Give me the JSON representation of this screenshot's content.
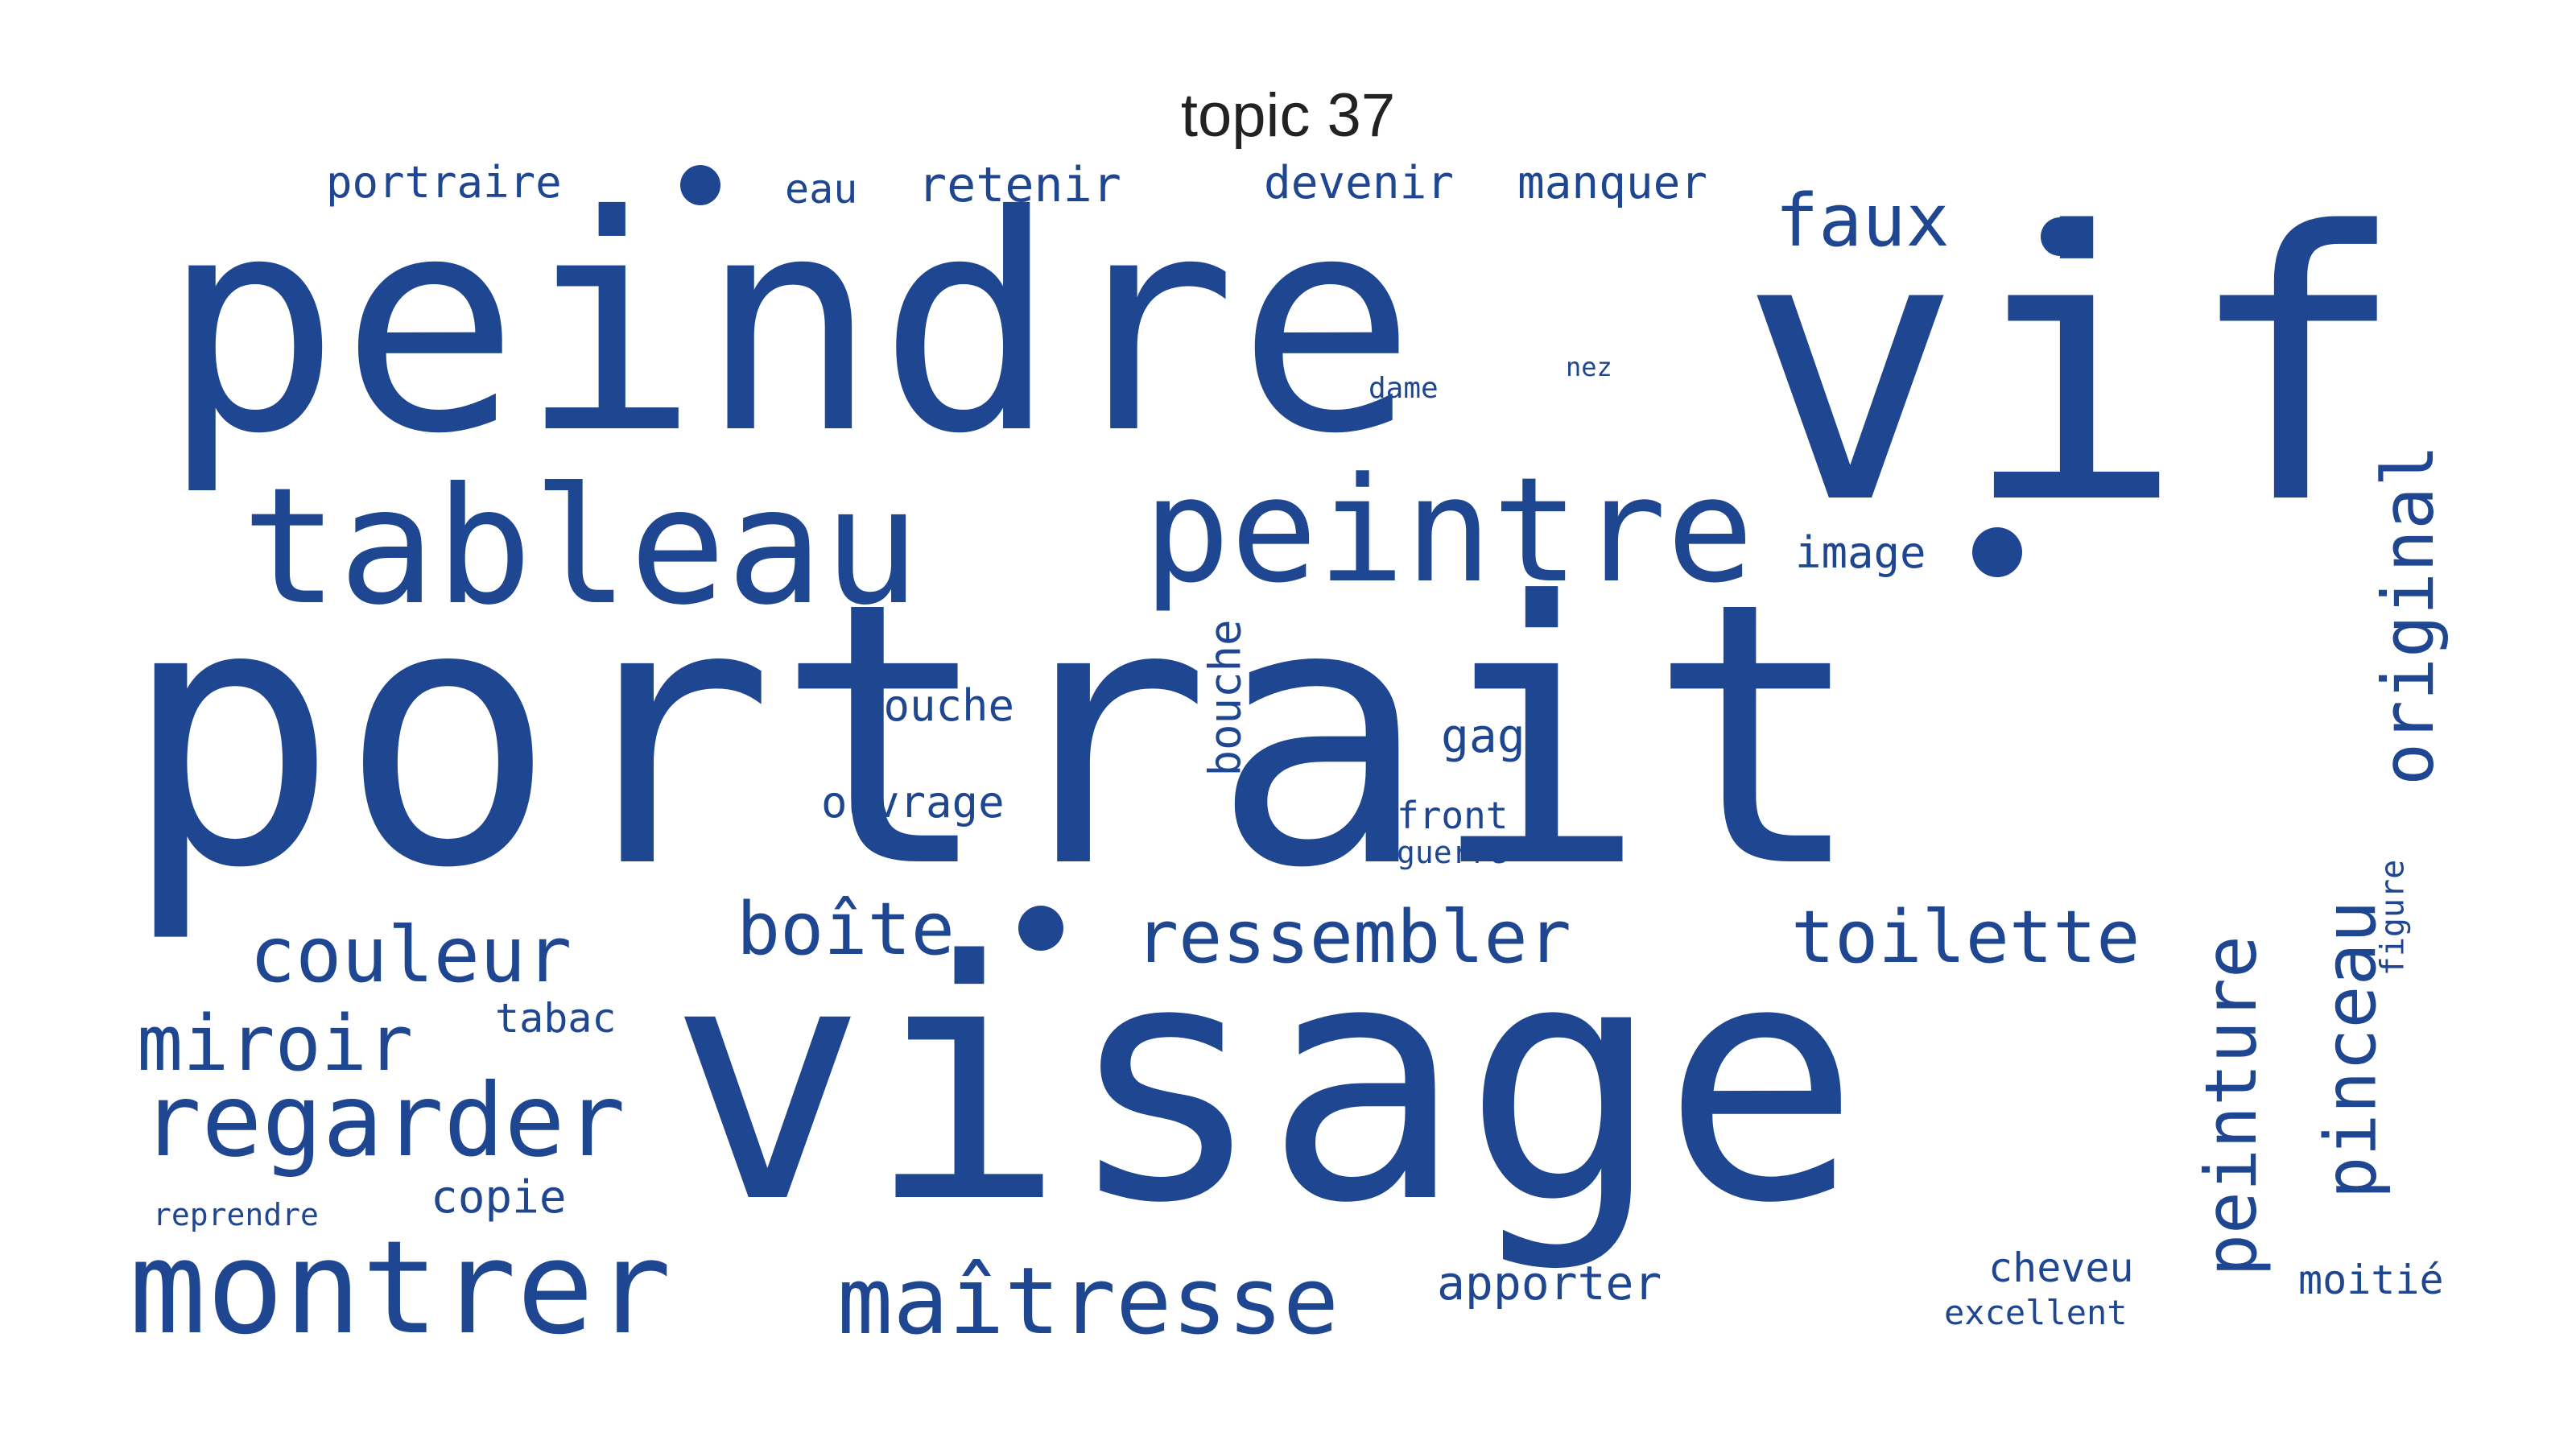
{
  "title": "topic 37",
  "color": "#1f4690",
  "words": [
    "portrait",
    "visage",
    "peindre",
    "vif",
    "tableau",
    "peintre",
    "montrer",
    "regarder",
    "maîtresse",
    "couleur",
    "miroir",
    "boîte",
    "ressembler",
    "toilette",
    "peinture",
    "pinceau",
    "original",
    "faux",
    "portraire",
    "eau",
    "retenir",
    "devenir",
    "manquer",
    "image",
    "dame",
    "mouche",
    "bouche",
    "gage",
    "ouvrage",
    "front",
    "guerre",
    "tabac",
    "copie",
    "reprendre",
    "apporter",
    "cheveu",
    "excellent",
    "moitié",
    "figure",
    "nez"
  ]
}
